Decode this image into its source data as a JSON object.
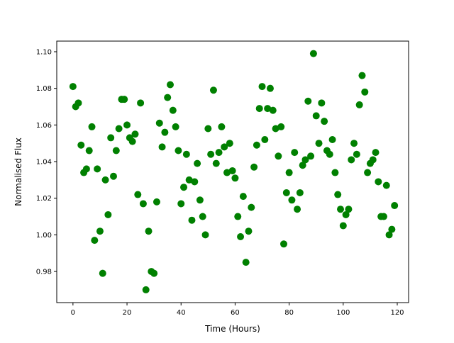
{
  "chart_data": {
    "type": "scatter",
    "title": "",
    "xlabel": "Time (Hours)",
    "ylabel": "Normalised Flux",
    "xlim": [
      -6.0,
      124.2
    ],
    "ylim": [
      0.963,
      1.1058
    ],
    "xticks": [
      0,
      20,
      40,
      60,
      80,
      100,
      120
    ],
    "yticks": [
      0.98,
      1.0,
      1.02,
      1.04,
      1.06,
      1.08,
      1.1
    ],
    "ytick_labels": [
      "0.98",
      "1.00",
      "1.02",
      "1.04",
      "1.06",
      "1.08",
      "1.10"
    ],
    "grid": false,
    "marker_color": "#008000",
    "x": [
      0,
      1,
      2,
      3,
      4,
      5,
      6,
      7,
      8,
      9,
      10,
      11,
      12,
      13,
      14,
      15,
      16,
      17,
      18,
      19,
      20,
      21,
      22,
      23,
      24,
      25,
      26,
      27,
      28,
      29,
      30,
      31,
      32,
      33,
      34,
      35,
      36,
      37,
      38,
      39,
      40,
      41,
      42,
      43,
      44,
      45,
      46,
      47,
      48,
      49,
      50,
      51,
      52,
      53,
      54,
      55,
      56,
      57,
      58,
      59,
      60,
      61,
      62,
      63,
      64,
      65,
      66,
      67,
      68,
      69,
      70,
      71,
      72,
      73,
      74,
      75,
      76,
      77,
      78,
      79,
      80,
      81,
      82,
      83,
      84,
      85,
      86,
      87,
      88,
      89,
      90,
      91,
      92,
      93,
      94,
      95,
      96,
      97,
      98,
      99,
      100,
      101,
      102,
      103,
      104,
      105,
      106,
      107,
      108,
      109,
      110,
      111,
      112,
      113,
      114,
      115,
      116,
      117,
      118,
      119
    ],
    "y": [
      1.081,
      1.07,
      1.072,
      1.049,
      1.034,
      1.036,
      1.046,
      1.059,
      0.997,
      1.036,
      1.002,
      0.979,
      1.03,
      1.011,
      1.053,
      1.032,
      1.046,
      1.058,
      1.074,
      1.074,
      1.06,
      1.053,
      1.051,
      1.055,
      1.022,
      1.072,
      1.017,
      0.97,
      1.002,
      0.98,
      0.979,
      1.018,
      1.061,
      1.048,
      1.056,
      1.075,
      1.082,
      1.068,
      1.059,
      1.046,
      1.017,
      1.026,
      1.044,
      1.03,
      1.008,
      1.029,
      1.039,
      1.019,
      1.01,
      1.0,
      1.058,
      1.044,
      1.079,
      1.039,
      1.045,
      1.059,
      1.048,
      1.034,
      1.05,
      1.035,
      1.031,
      1.01,
      0.999,
      1.021,
      0.985,
      1.002,
      1.015,
      1.037,
      1.049,
      1.069,
      1.081,
      1.052,
      1.069,
      1.08,
      1.068,
      1.058,
      1.043,
      1.059,
      0.995,
      1.023,
      1.034,
      1.019,
      1.045,
      1.014,
      1.023,
      1.038,
      1.041,
      1.073,
      1.043,
      1.099,
      1.065,
      1.05,
      1.072,
      1.062,
      1.046,
      1.044,
      1.052,
      1.034,
      1.022,
      1.014,
      1.005,
      1.011,
      1.014,
      1.041,
      1.05,
      1.044,
      1.071,
      1.087,
      1.078,
      1.034,
      1.039,
      1.041,
      1.045,
      1.029,
      1.01,
      1.01,
      1.027,
      1.0,
      1.003,
      1.016
    ]
  }
}
